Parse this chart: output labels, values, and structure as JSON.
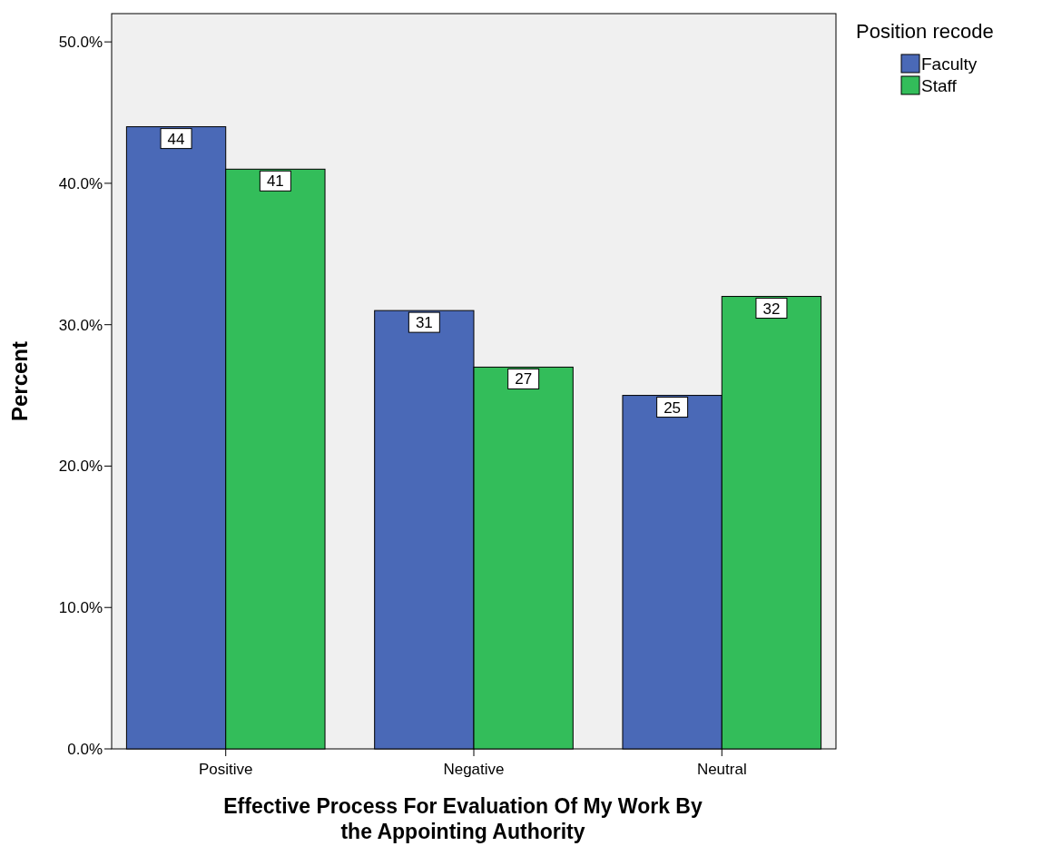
{
  "chart_data": {
    "type": "bar",
    "xlabel": "Effective Process For Evaluation Of My Work By the Appointing Authority",
    "ylabel": "Percent",
    "legend_title": "Position recode",
    "categories": [
      "Positive",
      "Negative",
      "Neutral"
    ],
    "series": [
      {
        "name": "Faculty",
        "color": "#4a69b7",
        "values": [
          44,
          31,
          25
        ]
      },
      {
        "name": "Staff",
        "color": "#33bd5a",
        "values": [
          41,
          27,
          32
        ]
      }
    ],
    "ylim": [
      0,
      52
    ],
    "yticks": [
      {
        "value": 0,
        "label": "0.0%"
      },
      {
        "value": 10,
        "label": "10.0%"
      },
      {
        "value": 20,
        "label": "20.0%"
      },
      {
        "value": 30,
        "label": "30.0%"
      },
      {
        "value": 40,
        "label": "40.0%"
      },
      {
        "value": 50,
        "label": "50.0%"
      }
    ],
    "grid": false,
    "legend": "top right",
    "data_labels": true
  }
}
